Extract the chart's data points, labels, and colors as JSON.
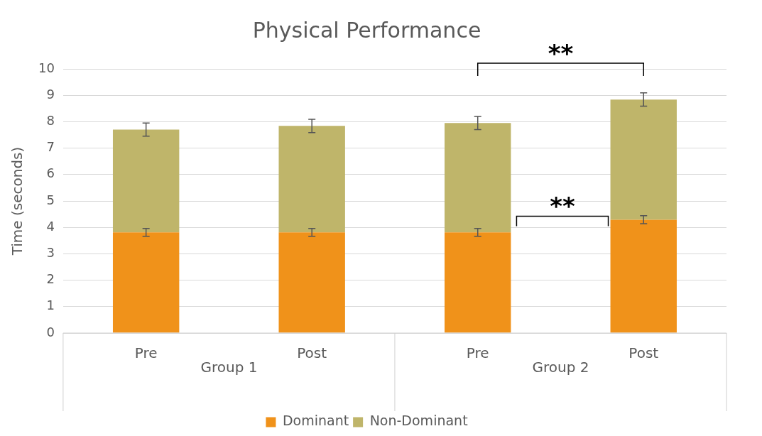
{
  "chart_data": {
    "type": "bar",
    "title": "Physical Performance",
    "ylabel": "Time (seconds)",
    "categories": [
      "Pre",
      "Post",
      "Pre",
      "Post"
    ],
    "stacked": true,
    "series": [
      {
        "name": "Dominant",
        "color": "#f0921a",
        "values": [
          3.81,
          3.81,
          3.81,
          4.29
        ],
        "errors": [
          0.15,
          0.15,
          0.15,
          0.15
        ]
      },
      {
        "name": "Non-Dominant",
        "color": "#bfb56a",
        "values": [
          3.89,
          4.03,
          4.14,
          4.55
        ],
        "errors": [
          0.25,
          0.25,
          0.25,
          0.25
        ]
      }
    ],
    "ylim": [
      0,
      10
    ],
    "yticks": [
      0,
      1,
      2,
      3,
      4,
      5,
      6,
      7,
      8,
      9,
      10
    ],
    "grid": "y",
    "legend": "bottom",
    "annotations": [
      "Group 1",
      "Group 2",
      "**",
      "**"
    ]
  }
}
